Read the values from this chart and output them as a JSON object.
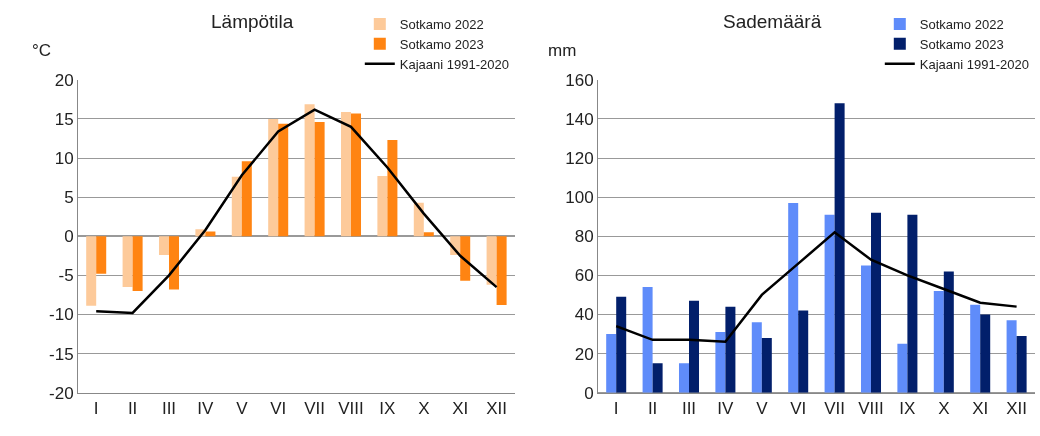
{
  "chart_data": [
    {
      "type": "bar",
      "title": "Lämpötila",
      "ylabel": "°C",
      "categories": [
        "I",
        "II",
        "III",
        "IV",
        "V",
        "VI",
        "VII",
        "VIII",
        "IX",
        "X",
        "XI",
        "XII"
      ],
      "series": [
        {
          "name": "Sotkamo 2022",
          "color": "#fdca9a",
          "values": [
            -8.9,
            -6.5,
            -2.4,
            0.9,
            7.6,
            15.0,
            16.9,
            15.9,
            7.7,
            4.3,
            -2.4,
            -6.2
          ]
        },
        {
          "name": "Sotkamo 2023",
          "color": "#ff8412",
          "values": [
            -4.8,
            -7.0,
            -6.8,
            0.6,
            9.6,
            14.4,
            14.6,
            15.7,
            12.3,
            0.5,
            -5.7,
            -8.8
          ]
        },
        {
          "name": "Kajaani 1991-2020",
          "type": "line",
          "color": "#000000",
          "values": [
            -9.6,
            -9.8,
            -5.0,
            0.8,
            7.8,
            13.4,
            16.2,
            14.0,
            8.8,
            2.9,
            -2.5,
            -6.5
          ]
        }
      ],
      "ylim": [
        -20,
        20
      ],
      "yticks": [
        -20,
        -15,
        -10,
        -5,
        0,
        5,
        10,
        15,
        20
      ],
      "grid": "y",
      "legend": "top right",
      "marker": "none",
      "line_style": "solid"
    },
    {
      "type": "bar",
      "title": "Sademäärä",
      "ylabel": "mm",
      "categories": [
        "I",
        "II",
        "III",
        "IV",
        "V",
        "VI",
        "VII",
        "VIII",
        "IX",
        "X",
        "XI",
        "XII"
      ],
      "series": [
        {
          "name": "Sotkamo 2022",
          "color": "#5f8cfa",
          "values": [
            30,
            54,
            15,
            31,
            36,
            97,
            91,
            65,
            25,
            52,
            45,
            37
          ]
        },
        {
          "name": "Sotkamo 2023",
          "color": "#021f6b",
          "values": [
            49,
            15,
            47,
            44,
            28,
            42,
            148,
            92,
            91,
            62,
            40,
            29
          ]
        },
        {
          "name": "Kajaani 1991-2020",
          "type": "line",
          "color": "#000000",
          "values": [
            34,
            27,
            27,
            26,
            50,
            66,
            82,
            68,
            60,
            53,
            46,
            44
          ]
        }
      ],
      "ylim": [
        0,
        160
      ],
      "yticks": [
        0,
        20,
        40,
        60,
        80,
        100,
        120,
        140,
        160
      ],
      "grid": "y",
      "legend": "top right",
      "marker": "none",
      "line_style": "solid"
    }
  ]
}
